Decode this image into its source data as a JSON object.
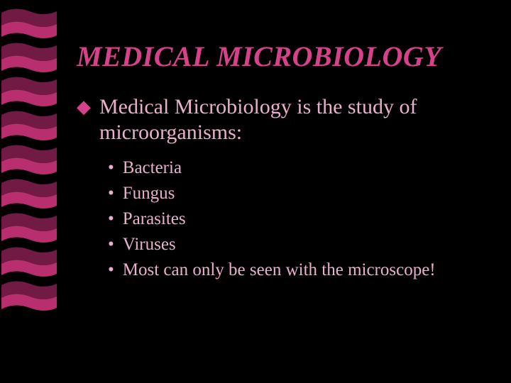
{
  "colors": {
    "background": "#000000",
    "title": "#d6428a",
    "bullet_main": "#d6428a",
    "text_main": "#e9b0cd",
    "bullet_sub": "#e9b0cd",
    "text_sub": "#e9b0cd",
    "ribbon_top": "#701a44",
    "ribbon_bottom": "#b82e6e"
  },
  "ribbons": {
    "count": 9,
    "width": 82,
    "height": 46
  },
  "title": "MEDICAL MICROBIOLOGY",
  "main_bullet": "◆",
  "main_text": "Medical Microbiology is the study of microorganisms:",
  "sub_bullet": "•",
  "sub_items": [
    "Bacteria",
    "Fungus",
    "Parasites",
    "Viruses",
    "Most can only be seen with the microscope!"
  ],
  "typography": {
    "title_fontsize": 40,
    "title_style": "italic bold",
    "main_fontsize": 30,
    "sub_fontsize": 25,
    "font_family": "Times New Roman"
  }
}
